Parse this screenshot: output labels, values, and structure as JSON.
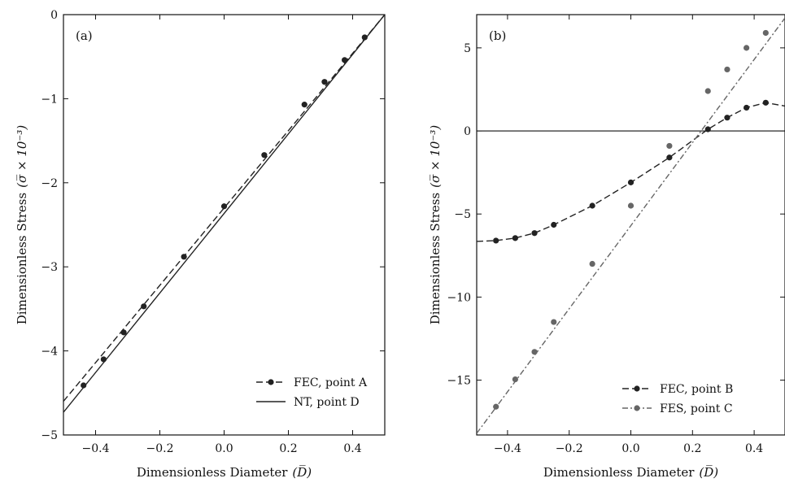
{
  "chart_data": [
    {
      "type": "line",
      "panel_label": "(a)",
      "xlabel": "Dimensionless Diameter",
      "xlabel_symbol": "(D̅)",
      "ylabel": "Dimensionless Stress",
      "ylabel_symbol": "(σ̅ × 10⁻³)",
      "xlim": [
        -0.5,
        0.5
      ],
      "ylim": [
        -5,
        0
      ],
      "xticks": [
        -0.4,
        -0.2,
        0.0,
        0.2,
        0.4
      ],
      "xtick_labels": [
        "−0.4",
        "−0.2",
        "0.0",
        "0.2",
        "0.4"
      ],
      "yticks": [
        0,
        -1,
        -2,
        -3,
        -4,
        -5
      ],
      "ytick_labels": [
        "0",
        "−1",
        "−2",
        "−3",
        "−4",
        "−5"
      ],
      "grid": false,
      "legend_position": "bottom-right",
      "series": [
        {
          "name": "FEC, point A",
          "style": "dashed-markers",
          "color": "#222222",
          "curve_x": [
            -0.5,
            0.5
          ],
          "curve_y": [
            -4.6,
            0.0
          ],
          "points": [
            {
              "x": -0.4375,
              "y": -4.41
            },
            {
              "x": -0.375,
              "y": -4.1
            },
            {
              "x": -0.3125,
              "y": -3.78
            },
            {
              "x": -0.25,
              "y": -3.47
            },
            {
              "x": -0.125,
              "y": -2.88
            },
            {
              "x": 0.0,
              "y": -2.28
            },
            {
              "x": 0.125,
              "y": -1.67
            },
            {
              "x": 0.25,
              "y": -1.07
            },
            {
              "x": 0.3125,
              "y": -0.8
            },
            {
              "x": 0.375,
              "y": -0.54
            },
            {
              "x": 0.4375,
              "y": -0.27
            }
          ]
        },
        {
          "name": "NT, point D",
          "style": "solid",
          "color": "#222222",
          "curve_x": [
            -0.5,
            0.5
          ],
          "curve_y": [
            -4.73,
            0.0
          ],
          "points": []
        }
      ]
    },
    {
      "type": "line",
      "panel_label": "(b)",
      "xlabel": "Dimensionless Diameter",
      "xlabel_symbol": "(D̅)",
      "ylabel": "Dimensionless Stress",
      "ylabel_symbol": "(σ̅ × 10⁻³)",
      "xlim": [
        -0.5,
        0.5
      ],
      "ylim": [
        -18.3,
        7
      ],
      "xticks": [
        -0.4,
        -0.2,
        0.0,
        0.2,
        0.4
      ],
      "xtick_labels": [
        "−0.4",
        "−0.2",
        "0.0",
        "0.2",
        "0.4"
      ],
      "yticks": [
        5,
        0,
        -5,
        -10,
        -15
      ],
      "ytick_labels": [
        "5",
        "0",
        "−5",
        "−10",
        "−15"
      ],
      "grid": false,
      "zero_line": true,
      "legend_position": "bottom-right",
      "series": [
        {
          "name": "FEC, point B",
          "style": "dashed-markers",
          "color": "#222222",
          "curve_x": [
            -0.5,
            -0.4375,
            -0.375,
            -0.3125,
            -0.25,
            -0.125,
            0.0,
            0.125,
            0.25,
            0.3125,
            0.375,
            0.4375,
            0.5
          ],
          "curve_y": [
            -6.65,
            -6.6,
            -6.45,
            -6.15,
            -5.65,
            -4.5,
            -3.1,
            -1.6,
            0.1,
            0.8,
            1.4,
            1.7,
            1.5
          ],
          "points": [
            {
              "x": -0.4375,
              "y": -6.6
            },
            {
              "x": -0.375,
              "y": -6.45
            },
            {
              "x": -0.3125,
              "y": -6.15
            },
            {
              "x": -0.25,
              "y": -5.65
            },
            {
              "x": -0.125,
              "y": -4.5
            },
            {
              "x": 0.0,
              "y": -3.1
            },
            {
              "x": 0.125,
              "y": -1.6
            },
            {
              "x": 0.25,
              "y": 0.1
            },
            {
              "x": 0.3125,
              "y": 0.8
            },
            {
              "x": 0.375,
              "y": 1.4
            },
            {
              "x": 0.4375,
              "y": 1.7
            }
          ]
        },
        {
          "name": "FES, point C",
          "style": "dashdot-markers",
          "color": "#666666",
          "curve_x": [
            -0.5,
            0.5
          ],
          "curve_y": [
            -18.2,
            6.8
          ],
          "points": [
            {
              "x": -0.4375,
              "y": -16.6
            },
            {
              "x": -0.375,
              "y": -14.95
            },
            {
              "x": -0.3125,
              "y": -13.3
            },
            {
              "x": -0.25,
              "y": -11.5
            },
            {
              "x": -0.125,
              "y": -8.0
            },
            {
              "x": 0.0,
              "y": -4.5
            },
            {
              "x": 0.125,
              "y": -0.9
            },
            {
              "x": 0.25,
              "y": 2.4
            },
            {
              "x": 0.3125,
              "y": 3.7
            },
            {
              "x": 0.375,
              "y": 5.0
            },
            {
              "x": 0.4375,
              "y": 5.9
            }
          ]
        }
      ]
    }
  ]
}
